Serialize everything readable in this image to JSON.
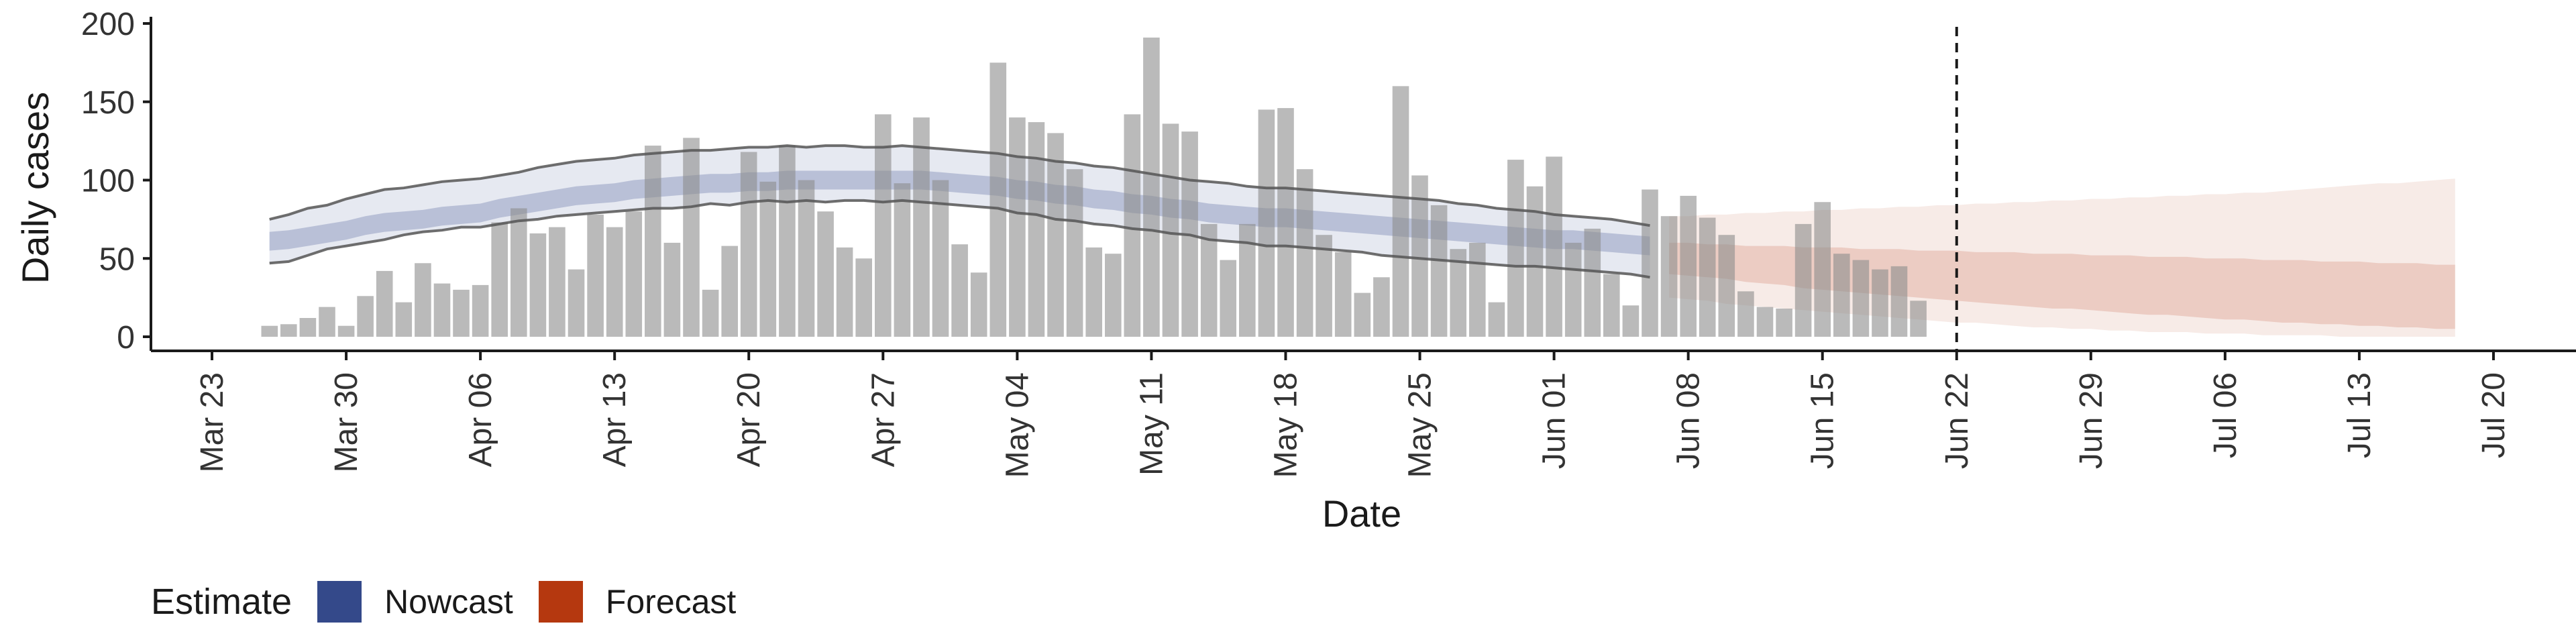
{
  "chart_data": {
    "type": "bar",
    "xlabel": "Date",
    "ylabel": "Daily cases",
    "ylim": [
      0,
      200
    ],
    "y_ticks": [
      0,
      50,
      100,
      150,
      200
    ],
    "x_start": "2020-03-23",
    "x_end": "2020-07-20",
    "x_ticks": [
      "Mar 23",
      "Mar 30",
      "Apr 06",
      "Apr 13",
      "Apr 20",
      "Apr 27",
      "May 04",
      "May 11",
      "May 18",
      "May 25",
      "Jun 01",
      "Jun 08",
      "Jun 15",
      "Jun 22",
      "Jun 29",
      "Jul 06",
      "Jul 13",
      "Jul 20"
    ],
    "forecast_date": "2020-06-22",
    "bar_dates_start": "2020-03-26",
    "bar_values": [
      7,
      8,
      12,
      19,
      7,
      26,
      42,
      22,
      47,
      34,
      30,
      33,
      73,
      82,
      66,
      70,
      43,
      78,
      70,
      80,
      122,
      60,
      127,
      30,
      58,
      118,
      99,
      122,
      100,
      80,
      57,
      50,
      142,
      98,
      140,
      100,
      59,
      41,
      175,
      140,
      137,
      130,
      107,
      57,
      53,
      142,
      191,
      136,
      131,
      72,
      49,
      72,
      145,
      146,
      107,
      65,
      54,
      28,
      38,
      160,
      103,
      84,
      56,
      60,
      22,
      113,
      96,
      115,
      60,
      69,
      40,
      20,
      94,
      77,
      90,
      76,
      65,
      29,
      19,
      18,
      72,
      86,
      53,
      49,
      43,
      45,
      23
    ],
    "nowcast": {
      "name": "Nowcast",
      "color": "#34498a",
      "dates_start": "2020-03-26",
      "median": [
        61,
        62,
        64,
        66,
        68,
        71,
        73,
        74,
        75,
        77,
        78,
        79,
        82,
        84,
        86,
        88,
        90,
        91,
        92,
        94,
        95,
        96,
        97,
        98,
        98,
        99,
        99,
        100,
        100,
        100,
        100,
        100,
        100,
        100,
        100,
        99,
        98,
        97,
        96,
        94,
        93,
        91,
        90,
        88,
        87,
        85,
        84,
        82,
        81,
        79,
        78,
        77,
        76,
        76,
        75,
        74,
        73,
        72,
        71,
        70,
        69,
        68,
        67,
        66,
        65,
        64,
        63,
        62,
        62,
        61,
        60,
        59,
        58
      ],
      "inner_lo": [
        55,
        56,
        58,
        60,
        62,
        65,
        67,
        68,
        69,
        71,
        72,
        73,
        76,
        78,
        80,
        82,
        84,
        85,
        86,
        88,
        89,
        90,
        91,
        92,
        92,
        93,
        93,
        94,
        94,
        94,
        94,
        94,
        94,
        94,
        94,
        93,
        92,
        91,
        90,
        88,
        87,
        85,
        84,
        82,
        81,
        79,
        78,
        76,
        75,
        73,
        72,
        71,
        70,
        70,
        69,
        68,
        67,
        66,
        65,
        64,
        63,
        62,
        61,
        60,
        59,
        58,
        57,
        56,
        56,
        55,
        54,
        53,
        52
      ],
      "inner_hi": [
        67,
        68,
        70,
        72,
        74,
        77,
        79,
        80,
        81,
        83,
        84,
        85,
        88,
        90,
        92,
        94,
        96,
        97,
        98,
        100,
        101,
        102,
        103,
        104,
        104,
        105,
        105,
        106,
        106,
        106,
        106,
        106,
        106,
        106,
        106,
        105,
        104,
        103,
        102,
        100,
        99,
        97,
        96,
        94,
        93,
        91,
        90,
        88,
        87,
        85,
        84,
        83,
        82,
        82,
        81,
        80,
        79,
        78,
        77,
        76,
        75,
        74,
        73,
        72,
        71,
        70,
        69,
        68,
        68,
        67,
        66,
        65,
        64
      ],
      "outer_lo": [
        47,
        48,
        52,
        56,
        58,
        60,
        62,
        65,
        67,
        68,
        70,
        70,
        72,
        74,
        75,
        77,
        78,
        79,
        80,
        81,
        82,
        82,
        83,
        85,
        84,
        86,
        87,
        86,
        87,
        86,
        87,
        87,
        86,
        87,
        86,
        85,
        84,
        83,
        82,
        79,
        78,
        75,
        74,
        72,
        71,
        69,
        68,
        66,
        65,
        62,
        61,
        60,
        58,
        58,
        57,
        56,
        55,
        54,
        52,
        51,
        50,
        49,
        48,
        47,
        46,
        45,
        45,
        44,
        43,
        42,
        41,
        40,
        38
      ],
      "outer_hi": [
        75,
        78,
        82,
        84,
        88,
        91,
        94,
        95,
        97,
        99,
        100,
        101,
        103,
        105,
        108,
        110,
        112,
        113,
        114,
        116,
        117,
        118,
        119,
        119,
        120,
        121,
        121,
        122,
        121,
        122,
        122,
        121,
        121,
        122,
        121,
        120,
        119,
        118,
        117,
        115,
        114,
        112,
        111,
        109,
        108,
        106,
        104,
        102,
        100,
        99,
        98,
        96,
        95,
        95,
        94,
        93,
        92,
        91,
        90,
        89,
        88,
        87,
        85,
        84,
        82,
        81,
        80,
        78,
        77,
        76,
        75,
        73,
        71
      ]
    },
    "forecast": {
      "name": "Forecast",
      "color": "#b5380f",
      "dates_start": "2020-06-07",
      "median": [
        50,
        49,
        48,
        47,
        46,
        46,
        45,
        44,
        44,
        43,
        42,
        42,
        41,
        40,
        40,
        39,
        38,
        38,
        37,
        36,
        36,
        35,
        34,
        34,
        33,
        32,
        32,
        31,
        30,
        30,
        29,
        28,
        28,
        27,
        26,
        26,
        25,
        24,
        24,
        23,
        22,
        22
      ],
      "inner_lo": [
        40,
        39,
        38,
        37,
        35,
        34,
        33,
        31,
        30,
        29,
        28,
        27,
        26,
        25,
        24,
        23,
        22,
        21,
        20,
        19,
        18,
        18,
        17,
        16,
        15,
        14,
        14,
        13,
        12,
        11,
        11,
        10,
        9,
        9,
        8,
        8,
        7,
        7,
        6,
        6,
        5,
        5
      ],
      "inner_hi": [
        60,
        60,
        59,
        59,
        58,
        58,
        58,
        57,
        57,
        57,
        56,
        56,
        56,
        55,
        55,
        55,
        54,
        54,
        54,
        53,
        53,
        53,
        52,
        52,
        52,
        51,
        51,
        51,
        50,
        50,
        50,
        49,
        49,
        49,
        48,
        48,
        48,
        47,
        47,
        47,
        46,
        46
      ],
      "outer_lo": [
        25,
        24,
        23,
        21,
        20,
        19,
        18,
        17,
        16,
        15,
        14,
        13,
        12,
        11,
        10,
        9,
        9,
        8,
        7,
        6,
        6,
        5,
        5,
        4,
        4,
        3,
        3,
        3,
        2,
        2,
        2,
        1,
        1,
        1,
        1,
        0,
        0,
        0,
        0,
        0,
        0,
        0
      ],
      "outer_hi": [
        77,
        77,
        78,
        78,
        79,
        79,
        80,
        80,
        81,
        81,
        82,
        82,
        83,
        83,
        84,
        84,
        85,
        85,
        86,
        86,
        87,
        87,
        88,
        88,
        89,
        89,
        90,
        90,
        91,
        91,
        92,
        92,
        93,
        94,
        95,
        96,
        97,
        98,
        98,
        99,
        100,
        101
      ]
    }
  },
  "legend": {
    "title": "Estimate",
    "items": [
      {
        "label": "Nowcast",
        "color": "#34498a"
      },
      {
        "label": "Forecast",
        "color": "#b5380f"
      }
    ]
  }
}
